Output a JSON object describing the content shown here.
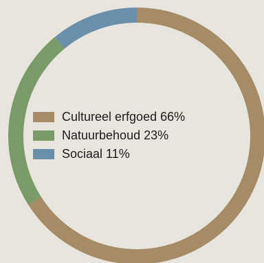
{
  "chart_data": {
    "type": "pie",
    "variant": "donut",
    "title": "",
    "categories": [
      "Cultureel erfgoed",
      "Natuurbehoud",
      "Sociaal"
    ],
    "values": [
      66,
      23,
      11
    ],
    "unit": "%",
    "colors": [
      "#a58c66",
      "#7a9a68",
      "#6a8faa"
    ],
    "legend": {
      "placement": "center",
      "items": [
        {
          "label": "Cultureel erfgoed 66%",
          "color": "#a58c66"
        },
        {
          "label": "Natuurbehoud 23%",
          "color": "#7a9a68"
        },
        {
          "label": "Sociaal 11%",
          "color": "#6a8faa"
        }
      ]
    }
  }
}
